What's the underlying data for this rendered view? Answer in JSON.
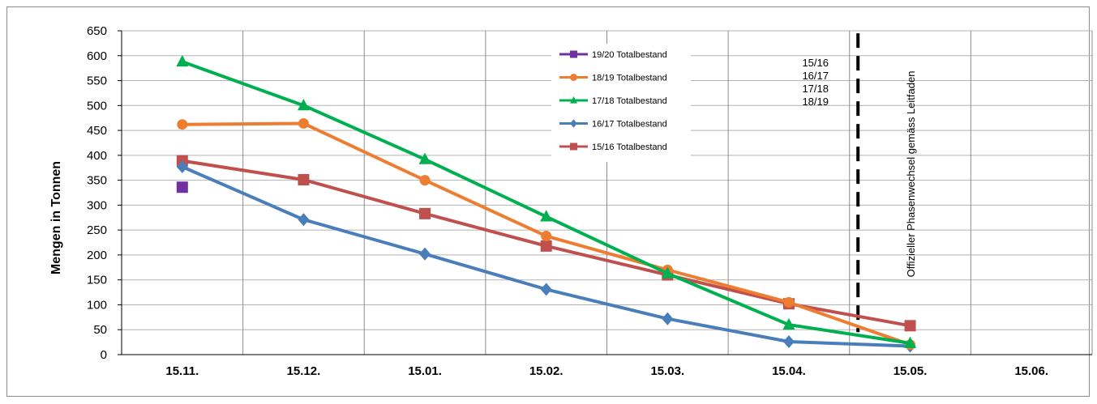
{
  "chart_data": {
    "type": "line",
    "ylabel": "Mengen in Tonnen",
    "xlabel": "",
    "categories": [
      "15.11.",
      "15.12.",
      "15.01.",
      "15.02.",
      "15.03.",
      "15.04.",
      "15.05.",
      "15.06."
    ],
    "ylim": [
      0,
      650
    ],
    "yticks": [
      0,
      50,
      100,
      150,
      200,
      250,
      300,
      350,
      400,
      450,
      500,
      550,
      600,
      650
    ],
    "grid": "vertical and horizontal",
    "legend_position": "top-center",
    "series": [
      {
        "name": "19/20 Totalbestand",
        "color": "#7030a0",
        "marker": "square",
        "values": [
          336,
          null,
          null,
          null,
          null,
          null,
          null,
          null
        ]
      },
      {
        "name": "18/19 Totalbestand",
        "color": "#ed7d31",
        "marker": "circle",
        "values": [
          462,
          464,
          350,
          238,
          170,
          105,
          20,
          null
        ]
      },
      {
        "name": "17/18 Totalbestand",
        "color": "#00b050",
        "marker": "triangle",
        "values": [
          588,
          500,
          392,
          277,
          163,
          60,
          23,
          null
        ]
      },
      {
        "name": "16/17 Totalbestand",
        "color": "#4a7ebb",
        "marker": "diamond",
        "values": [
          377,
          271,
          202,
          131,
          72,
          26,
          17,
          null
        ]
      },
      {
        "name": "15/16 Totalbestand",
        "color": "#c0504d",
        "marker": "square",
        "values": [
          389,
          351,
          283,
          218,
          160,
          102,
          58,
          null
        ]
      }
    ],
    "annotations": {
      "phase_label": "Offizieller Phasenwechsel gemäss Leitfaden",
      "seasons": [
        "15/16",
        "16/17",
        "17/18",
        "18/19"
      ]
    }
  }
}
